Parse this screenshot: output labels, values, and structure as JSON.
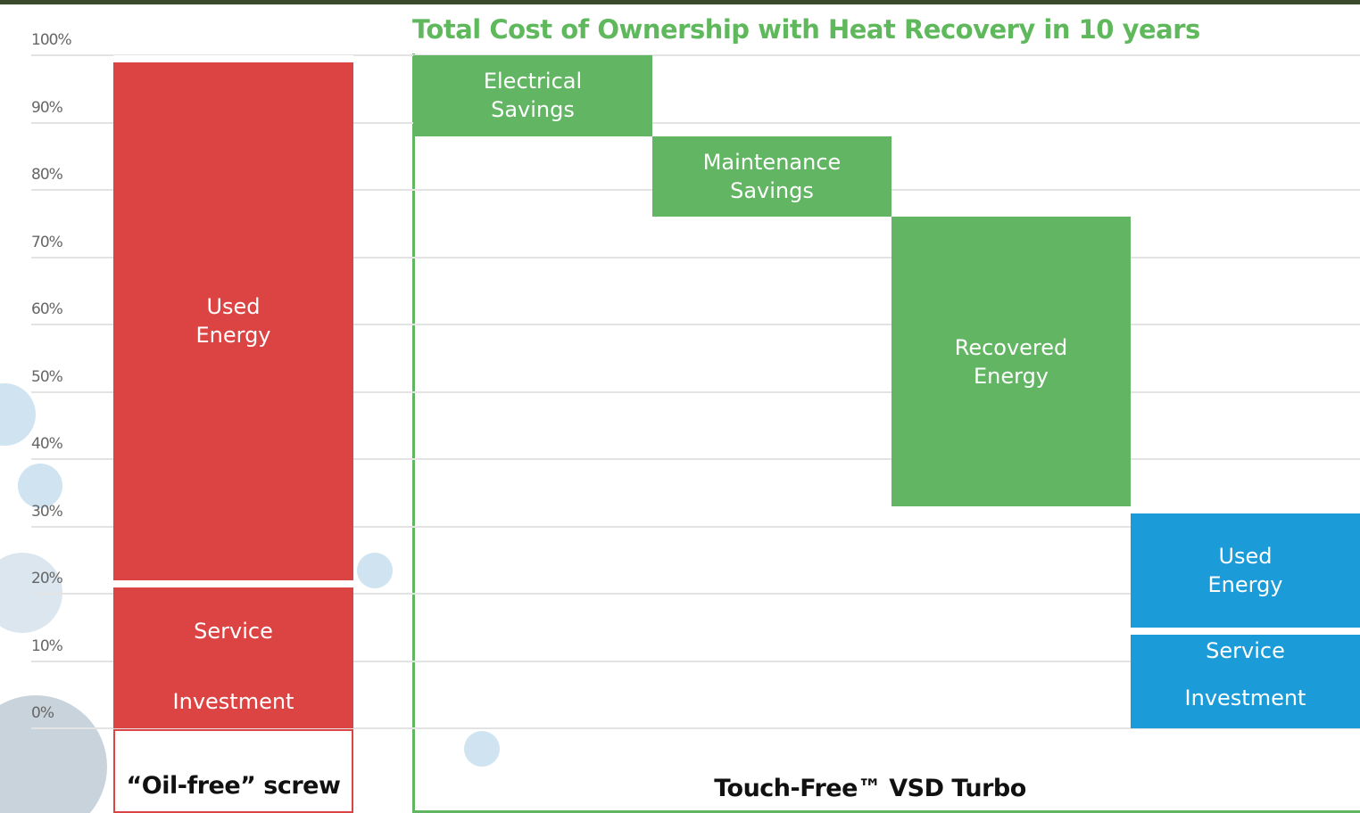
{
  "chart_data": {
    "type": "waterfall",
    "title": "Total Cost of Ownership with Heat Recovery in 10 years",
    "ylim": [
      0,
      100
    ],
    "yticks": [
      {
        "value": 0,
        "label": "0%"
      },
      {
        "value": 10,
        "label": "10%"
      },
      {
        "value": 20,
        "label": "20%"
      },
      {
        "value": 30,
        "label": "30%"
      },
      {
        "value": 40,
        "label": "40%"
      },
      {
        "value": 50,
        "label": "50%"
      },
      {
        "value": 60,
        "label": "60%"
      },
      {
        "value": 70,
        "label": "70%"
      },
      {
        "value": 80,
        "label": "80%"
      },
      {
        "value": 90,
        "label": "90%"
      },
      {
        "value": 100,
        "label": "100%"
      }
    ],
    "grid": true,
    "baseline": {
      "name": "“Oil-free” screw",
      "color": "#dc4444",
      "segments": [
        {
          "name": "Investment",
          "value": 8
        },
        {
          "name": "Service",
          "value": 14
        },
        {
          "name": "Used Energy",
          "value": 78
        }
      ]
    },
    "savings": {
      "color": "#62b562",
      "segments": [
        {
          "name": "Electrical Savings",
          "value": 12
        },
        {
          "name": "Maintenance Savings",
          "value": 12
        },
        {
          "name": "Recovered Energy",
          "value": 43
        }
      ]
    },
    "result": {
      "name": "Touch-Free™ VSD Turbo",
      "color": "#1b9bd8",
      "segments": [
        {
          "name": "Investment",
          "value": 9
        },
        {
          "name": "Service",
          "value": 6
        },
        {
          "name": "Used Energy",
          "value": 18
        }
      ]
    }
  }
}
